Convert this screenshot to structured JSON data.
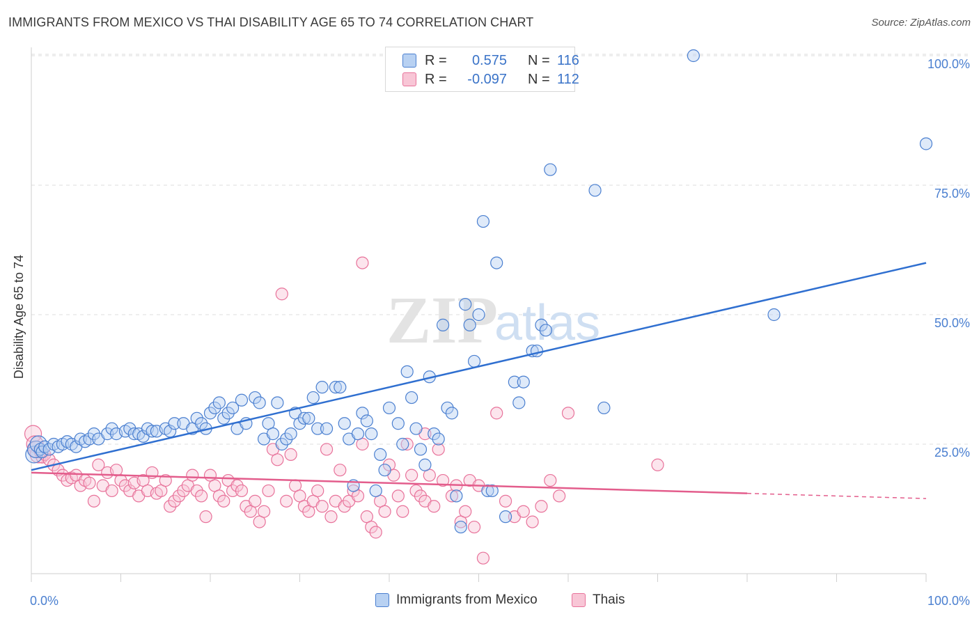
{
  "title": "IMMIGRANTS FROM MEXICO VS THAI DISABILITY AGE 65 TO 74 CORRELATION CHART",
  "source": "Source: ZipAtlas.com",
  "watermark": {
    "zip": "ZIP",
    "atlas": "atlas"
  },
  "legend": {
    "rows": [
      {
        "r_label": "R =",
        "r_value": "0.575",
        "n_label": "N =",
        "n_value": "116",
        "color": "#4a7fd0"
      },
      {
        "r_label": "R =",
        "r_value": "-0.097",
        "n_label": "N =",
        "n_value": "112",
        "color": "#e8729a"
      }
    ]
  },
  "bottom_legend": [
    {
      "label": "Immigrants from Mexico",
      "color": "#4a7fd0"
    },
    {
      "label": "Thais",
      "color": "#e8729a"
    }
  ],
  "chart_data": {
    "type": "scatter",
    "title": "IMMIGRANTS FROM MEXICO VS THAI DISABILITY AGE 65 TO 74 CORRELATION CHART",
    "xlabel": "",
    "ylabel": "Disability Age 65 to 74",
    "xlim": [
      0,
      100
    ],
    "ylim": [
      0,
      100
    ],
    "x_tick_labels": [
      "0.0%",
      "100.0%"
    ],
    "y_ticks": [
      25,
      50,
      75,
      100
    ],
    "y_tick_labels": [
      "25.0%",
      "50.0%",
      "75.0%",
      "100.0%"
    ],
    "grid": "horizontal dashed",
    "legend_position": "top-center",
    "series": [
      {
        "name": "Immigrants from Mexico",
        "color": "#4a7fd0",
        "trend": {
          "x": [
            0,
            100
          ],
          "y": [
            20,
            60
          ]
        },
        "points": [
          [
            0.3,
            23
          ],
          [
            0.5,
            24
          ],
          [
            0.8,
            25
          ],
          [
            1,
            24
          ],
          [
            1.2,
            23.5
          ],
          [
            1.5,
            24.5
          ],
          [
            2,
            24
          ],
          [
            2.5,
            25
          ],
          [
            3,
            24.5
          ],
          [
            3.5,
            25
          ],
          [
            4,
            25.5
          ],
          [
            4.5,
            25
          ],
          [
            5,
            24.5
          ],
          [
            5.5,
            26
          ],
          [
            6,
            25.5
          ],
          [
            6.5,
            26
          ],
          [
            7,
            27
          ],
          [
            7.5,
            26
          ],
          [
            8.5,
            27
          ],
          [
            9,
            28
          ],
          [
            9.5,
            27
          ],
          [
            10.5,
            27.5
          ],
          [
            11,
            28
          ],
          [
            11.5,
            27
          ],
          [
            12,
            27
          ],
          [
            12.5,
            26.5
          ],
          [
            13,
            28
          ],
          [
            13.5,
            27.5
          ],
          [
            14,
            27.5
          ],
          [
            15,
            28
          ],
          [
            15.5,
            27.5
          ],
          [
            16,
            29
          ],
          [
            17,
            29
          ],
          [
            18,
            28
          ],
          [
            18.5,
            30
          ],
          [
            19,
            29
          ],
          [
            19.5,
            28
          ],
          [
            20,
            31
          ],
          [
            20.5,
            32
          ],
          [
            21,
            33
          ],
          [
            21.5,
            30
          ],
          [
            22,
            31
          ],
          [
            22.5,
            32
          ],
          [
            23,
            28
          ],
          [
            23.5,
            33.5
          ],
          [
            24,
            29
          ],
          [
            25,
            34
          ],
          [
            25.5,
            33
          ],
          [
            26,
            26
          ],
          [
            26.5,
            29
          ],
          [
            27,
            27
          ],
          [
            27.5,
            33
          ],
          [
            28,
            25
          ],
          [
            28.5,
            26
          ],
          [
            29,
            27
          ],
          [
            29.5,
            31
          ],
          [
            30,
            29
          ],
          [
            30.5,
            30
          ],
          [
            31,
            30
          ],
          [
            31.5,
            34
          ],
          [
            32,
            28
          ],
          [
            32.5,
            36
          ],
          [
            33,
            28
          ],
          [
            34,
            36
          ],
          [
            34.5,
            36
          ],
          [
            35,
            29
          ],
          [
            35.5,
            26
          ],
          [
            36,
            17
          ],
          [
            36.5,
            27
          ],
          [
            37,
            31
          ],
          [
            37.5,
            29.5
          ],
          [
            38,
            27
          ],
          [
            38.5,
            16
          ],
          [
            39,
            23
          ],
          [
            39.5,
            20
          ],
          [
            40,
            32
          ],
          [
            41,
            29
          ],
          [
            41.5,
            25
          ],
          [
            42,
            39
          ],
          [
            42.5,
            34
          ],
          [
            43,
            28
          ],
          [
            43.5,
            24
          ],
          [
            44,
            21
          ],
          [
            44.5,
            38
          ],
          [
            45,
            27
          ],
          [
            45.5,
            26
          ],
          [
            46,
            48
          ],
          [
            46.5,
            32
          ],
          [
            47,
            31
          ],
          [
            47.5,
            15
          ],
          [
            48,
            9
          ],
          [
            48.5,
            52
          ],
          [
            49,
            48
          ],
          [
            49.5,
            41
          ],
          [
            50,
            50
          ],
          [
            50.5,
            68
          ],
          [
            51,
            16
          ],
          [
            51.5,
            16
          ],
          [
            52,
            60
          ],
          [
            53,
            11
          ],
          [
            54,
            37
          ],
          [
            54.5,
            33
          ],
          [
            55,
            37
          ],
          [
            56,
            43
          ],
          [
            56.5,
            43
          ],
          [
            57,
            48
          ],
          [
            57.5,
            47
          ],
          [
            58,
            78
          ],
          [
            63,
            74
          ],
          [
            64,
            32
          ],
          [
            83,
            50
          ],
          [
            100,
            83
          ],
          [
            74,
            100
          ]
        ]
      },
      {
        "name": "Thais",
        "color": "#e8729a",
        "trend": {
          "x": [
            0,
            80
          ],
          "y": [
            19.5,
            15.5
          ],
          "dash_to": [
            100,
            14.5
          ]
        },
        "points": [
          [
            0.2,
            27
          ],
          [
            0.4,
            25
          ],
          [
            0.6,
            24
          ],
          [
            0.8,
            23
          ],
          [
            1,
            23.5
          ],
          [
            1.2,
            22.5
          ],
          [
            1.5,
            23
          ],
          [
            2,
            22
          ],
          [
            2.5,
            21
          ],
          [
            3,
            20
          ],
          [
            3.5,
            19
          ],
          [
            4,
            18
          ],
          [
            4.5,
            18.5
          ],
          [
            5,
            19
          ],
          [
            5.5,
            17
          ],
          [
            6,
            18
          ],
          [
            6.5,
            17.5
          ],
          [
            7,
            14
          ],
          [
            7.5,
            21
          ],
          [
            8,
            17
          ],
          [
            8.5,
            19.5
          ],
          [
            9,
            16
          ],
          [
            9.5,
            20
          ],
          [
            10,
            18
          ],
          [
            10.5,
            17
          ],
          [
            11,
            16
          ],
          [
            11.5,
            17.5
          ],
          [
            12,
            15
          ],
          [
            12.5,
            18
          ],
          [
            13,
            16
          ],
          [
            13.5,
            19.5
          ],
          [
            14,
            15.5
          ],
          [
            14.5,
            16
          ],
          [
            15,
            18
          ],
          [
            15.5,
            13
          ],
          [
            16,
            14
          ],
          [
            16.5,
            15
          ],
          [
            17,
            16
          ],
          [
            17.5,
            17
          ],
          [
            18,
            19
          ],
          [
            18.5,
            16
          ],
          [
            19,
            15
          ],
          [
            19.5,
            11
          ],
          [
            20,
            19
          ],
          [
            20.5,
            17
          ],
          [
            21,
            15
          ],
          [
            21.5,
            14
          ],
          [
            22,
            18
          ],
          [
            22.5,
            16
          ],
          [
            23,
            17
          ],
          [
            23.5,
            16
          ],
          [
            24,
            13
          ],
          [
            24.5,
            12
          ],
          [
            25,
            14
          ],
          [
            25.5,
            10
          ],
          [
            26,
            12
          ],
          [
            26.5,
            16
          ],
          [
            27,
            24
          ],
          [
            27.5,
            22
          ],
          [
            28,
            54
          ],
          [
            28.5,
            14
          ],
          [
            29,
            23
          ],
          [
            29.5,
            17
          ],
          [
            30,
            15
          ],
          [
            30.5,
            13
          ],
          [
            31,
            12
          ],
          [
            31.5,
            14
          ],
          [
            32,
            16
          ],
          [
            32.5,
            13
          ],
          [
            33,
            24
          ],
          [
            33.5,
            11
          ],
          [
            34,
            14
          ],
          [
            34.5,
            20
          ],
          [
            35,
            13
          ],
          [
            35.5,
            14
          ],
          [
            36,
            16
          ],
          [
            36.5,
            15
          ],
          [
            37,
            25
          ],
          [
            37.5,
            11
          ],
          [
            38,
            9
          ],
          [
            38.5,
            8
          ],
          [
            39,
            14
          ],
          [
            39.5,
            12
          ],
          [
            40,
            21
          ],
          [
            40.5,
            19
          ],
          [
            41,
            15
          ],
          [
            41.5,
            12
          ],
          [
            42,
            25
          ],
          [
            42.5,
            19
          ],
          [
            43,
            16
          ],
          [
            43.5,
            15
          ],
          [
            44,
            14
          ],
          [
            44.5,
            19
          ],
          [
            45,
            13
          ],
          [
            45.5,
            24
          ],
          [
            46,
            18
          ],
          [
            47,
            15
          ],
          [
            47.5,
            17
          ],
          [
            48,
            10
          ],
          [
            48.5,
            12
          ],
          [
            49,
            18
          ],
          [
            49.5,
            9
          ],
          [
            50,
            17
          ],
          [
            50.5,
            3
          ],
          [
            52,
            31
          ],
          [
            53,
            14
          ],
          [
            54,
            11
          ],
          [
            55,
            12
          ],
          [
            56,
            10
          ],
          [
            57,
            13
          ],
          [
            58,
            18
          ],
          [
            59,
            15
          ],
          [
            60,
            31
          ],
          [
            70,
            21
          ],
          [
            37,
            60
          ],
          [
            44,
            27
          ]
        ]
      }
    ]
  }
}
